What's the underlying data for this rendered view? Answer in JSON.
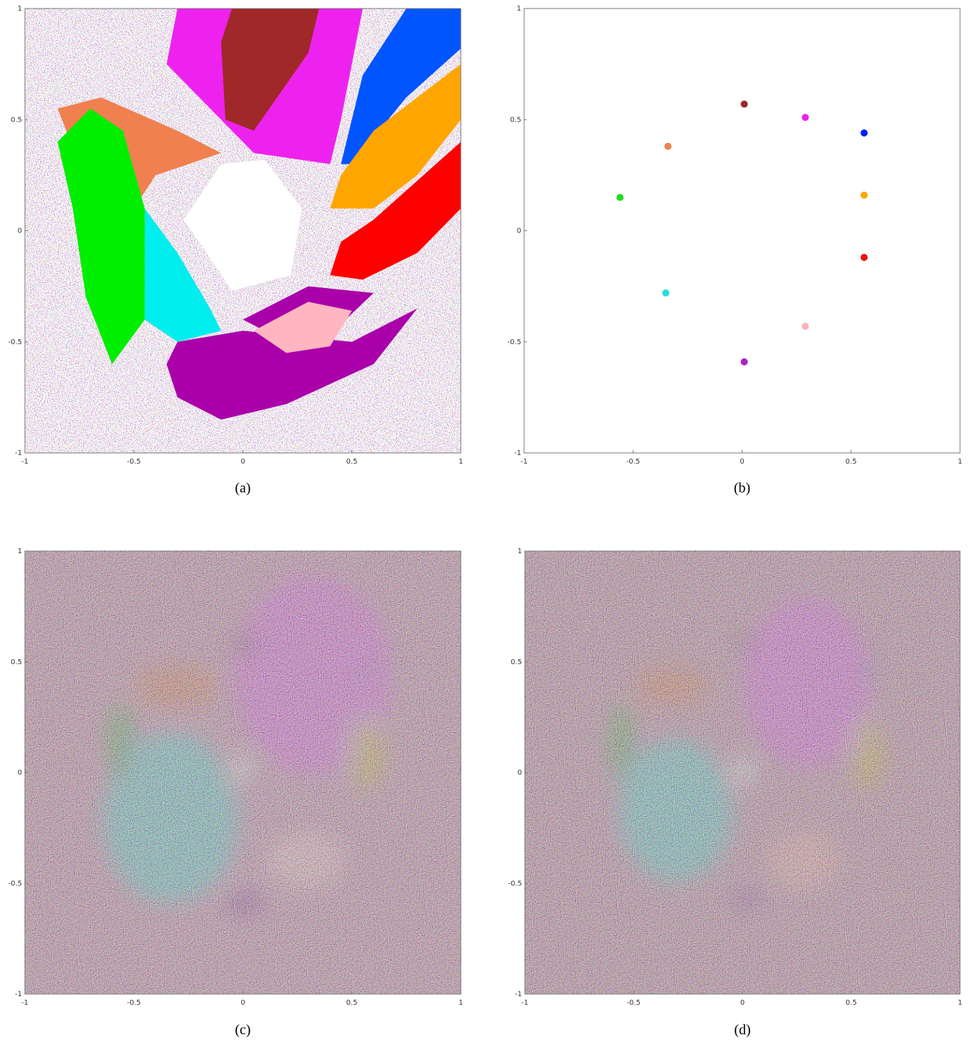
{
  "chart_data": [
    {
      "type": "image",
      "caption": "(a)",
      "xlim": [
        -1,
        1
      ],
      "ylim": [
        -1,
        1
      ],
      "xticks": [
        -1,
        -0.5,
        0,
        0.5,
        1
      ],
      "yticks": [
        -1,
        -0.5,
        0,
        0.5,
        1
      ]
    },
    {
      "type": "scatter",
      "caption": "(b)",
      "xlim": [
        -1,
        1
      ],
      "ylim": [
        -1,
        1
      ],
      "xticks": [
        -1,
        -0.5,
        0,
        0.5,
        1
      ],
      "yticks": [
        -1,
        -0.5,
        0,
        0.5,
        1
      ],
      "series": [
        {
          "color": "#22dd22",
          "x": [
            -0.56
          ],
          "y": [
            0.15
          ]
        },
        {
          "color": "#f08050",
          "x": [
            -0.34
          ],
          "y": [
            0.38
          ]
        },
        {
          "color": "#22dddd",
          "x": [
            -0.35
          ],
          "y": [
            -0.28
          ]
        },
        {
          "color": "#ee22ee",
          "x": [
            0.29
          ],
          "y": [
            0.51
          ]
        },
        {
          "color": "#0022ee",
          "x": [
            0.56
          ],
          "y": [
            0.44
          ]
        },
        {
          "color": "#ffa500",
          "x": [
            0.56
          ],
          "y": [
            0.16
          ]
        },
        {
          "color": "#ee1111",
          "x": [
            0.56
          ],
          "y": [
            -0.12
          ]
        },
        {
          "color": "#ffb0b8",
          "x": [
            0.29
          ],
          "y": [
            -0.43
          ]
        },
        {
          "color": "#aa22cc",
          "x": [
            0.01
          ],
          "y": [
            -0.59
          ]
        },
        {
          "color": "#a02828",
          "x": [
            0.01
          ],
          "y": [
            0.57
          ]
        }
      ]
    },
    {
      "type": "image",
      "caption": "(c)",
      "xlim": [
        -1,
        1
      ],
      "ylim": [
        -1,
        1
      ],
      "xticks": [
        -1,
        -0.5,
        0,
        0.5,
        1
      ],
      "yticks": [
        -1,
        -0.5,
        0,
        0.5,
        1
      ]
    },
    {
      "type": "image",
      "caption": "(d)",
      "xlim": [
        -1,
        1
      ],
      "ylim": [
        -1,
        1
      ],
      "xticks": [
        -1,
        -0.5,
        0,
        0.5,
        1
      ],
      "yticks": [
        -1,
        -0.5,
        0,
        0.5,
        1
      ]
    }
  ]
}
